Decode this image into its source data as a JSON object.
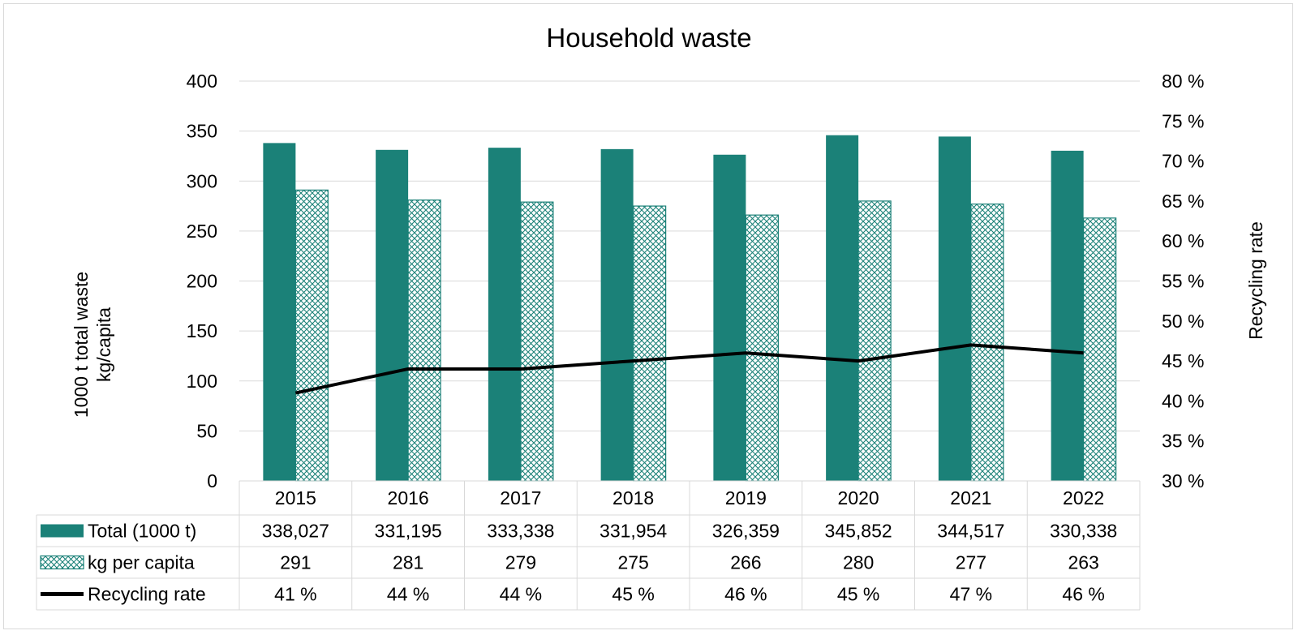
{
  "chart_data": {
    "type": "bar",
    "title": "Household waste",
    "categories": [
      "2015",
      "2016",
      "2017",
      "2018",
      "2019",
      "2020",
      "2021",
      "2022"
    ],
    "ylabel_left_line1": "1000 t total waste",
    "ylabel_left_line2": "kg/capita",
    "ylabel_right": "Recycling rate",
    "ylim_left": [
      0,
      400
    ],
    "yticks_left": [
      "0",
      "50",
      "100",
      "150",
      "200",
      "250",
      "300",
      "350",
      "400"
    ],
    "ylim_right": [
      30,
      80
    ],
    "yticks_right": [
      "30 %",
      "35 %",
      "40 %",
      "45 %",
      "50 %",
      "55 %",
      "60 %",
      "65 %",
      "70 %",
      "75 %",
      "80 %"
    ],
    "grid": true,
    "legend": "data table below chart",
    "series": [
      {
        "name": "Total (1000 t)",
        "kind": "bar",
        "axis": "left",
        "color": "#1b8178",
        "pattern": "solid",
        "values": [
          338.027,
          331.195,
          333.338,
          331.954,
          326.359,
          345.852,
          344.517,
          330.338
        ],
        "table_labels": [
          "338,027",
          "331,195",
          "333,338",
          "331,954",
          "326,359",
          "345,852",
          "344,517",
          "330,338"
        ]
      },
      {
        "name": "kg per capita",
        "kind": "bar",
        "axis": "left",
        "color": "#1b8178",
        "pattern": "crosshatch",
        "values": [
          291,
          281,
          279,
          275,
          266,
          280,
          277,
          263
        ],
        "table_labels": [
          "291",
          "281",
          "279",
          "275",
          "266",
          "280",
          "277",
          "263"
        ]
      },
      {
        "name": "Recycling rate",
        "kind": "line",
        "axis": "right",
        "color": "#000000",
        "values": [
          41,
          44,
          44,
          45,
          46,
          45,
          47,
          46
        ],
        "table_labels": [
          "41 %",
          "44 %",
          "44 %",
          "45 %",
          "46 %",
          "45 %",
          "47 %",
          "46 %"
        ]
      }
    ]
  }
}
